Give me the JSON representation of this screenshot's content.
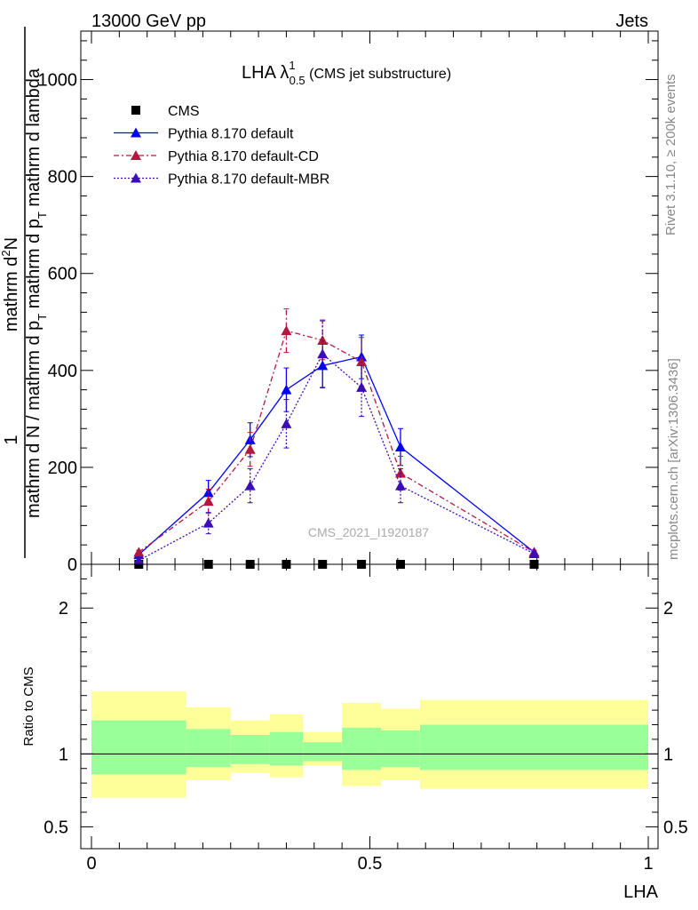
{
  "header": {
    "left": "13000 GeV pp",
    "right": "Jets"
  },
  "side_text": {
    "rivet": "Rivet 3.1.10, ≥ 200k events",
    "source": "mcplots.cern.ch [arXiv:1306.3436]"
  },
  "watermark": "CMS_2021_I1920187",
  "main": {
    "title_main": "LHA λ",
    "title_sup": "1",
    "title_sub": "0.5",
    "title_rest": " (CMS jet substructure)",
    "ylabel_top": "1",
    "ylabel_top_a": "mathrm d",
    "ylabel_top_b": "2",
    "ylabel_top_c": "N",
    "ylabel_bottom_a": "mathrm d N / mathrm d p",
    "ylabel_bottom_b": "T",
    "ylabel_bottom_c": " mathrm d p",
    "ylabel_bottom_d": "T",
    "ylabel_bottom_e": " mathrm d lambda"
  },
  "ratio": {
    "ylabel": "Ratio to CMS",
    "xlabel": "LHA"
  },
  "colors": {
    "cms": "#000000",
    "default": "#0000ff",
    "cd": "#b3173d",
    "mbr": "#3c0db5",
    "band_inner": "#99ff99",
    "band_outer": "#ffff99"
  },
  "chart_data": [
    {
      "type": "line",
      "panel": "main",
      "xlim": [
        0,
        1
      ],
      "ylim": [
        0,
        1100
      ],
      "yticks": [
        0,
        200,
        400,
        600,
        800,
        1000
      ],
      "ytick_labels": [
        "0",
        "200",
        "400",
        "600",
        "800",
        "1000"
      ],
      "x_edges": [
        0,
        0.17,
        0.25,
        0.32,
        0.38,
        0.45,
        0.52,
        0.59,
        1.0
      ],
      "legend": {
        "placement": "top-left"
      },
      "series": [
        {
          "name": "CMS",
          "marker": "square",
          "x": [
            0.085,
            0.21,
            0.285,
            0.35,
            0.415,
            0.485,
            0.555,
            0.795
          ],
          "y": [
            0,
            0,
            0,
            0,
            0,
            0,
            0,
            0
          ],
          "err": [
            0,
            0,
            0,
            0,
            0,
            0,
            0,
            0
          ]
        },
        {
          "name": "Pythia 8.170 default",
          "marker": "triangle",
          "line": "solid",
          "x": [
            0.085,
            0.21,
            0.285,
            0.35,
            0.415,
            0.485,
            0.555,
            0.795
          ],
          "y": [
            20,
            148,
            257,
            360,
            410,
            428,
            242,
            25
          ],
          "err": [
            4,
            25,
            35,
            45,
            45,
            45,
            38,
            4
          ]
        },
        {
          "name": "Pythia 8.170 default-CD",
          "marker": "triangle",
          "line": "dashdot",
          "x": [
            0.085,
            0.21,
            0.285,
            0.35,
            0.415,
            0.485,
            0.555,
            0.795
          ],
          "y": [
            25,
            130,
            237,
            482,
            462,
            418,
            188,
            25
          ],
          "err": [
            4,
            25,
            35,
            45,
            40,
            50,
            35,
            4
          ]
        },
        {
          "name": "Pythia 8.170 default-MBR",
          "marker": "triangle",
          "line": "dotted",
          "x": [
            0.085,
            0.21,
            0.285,
            0.35,
            0.415,
            0.485,
            0.555,
            0.795
          ],
          "y": [
            8,
            85,
            162,
            290,
            434,
            365,
            162,
            22
          ],
          "err": [
            4,
            22,
            35,
            50,
            70,
            60,
            35,
            4
          ]
        }
      ]
    },
    {
      "type": "area",
      "panel": "ratio",
      "xlim": [
        0,
        1
      ],
      "ylim": [
        0.35,
        2.3
      ],
      "yticks": [
        0.5,
        1,
        2
      ],
      "ytick_labels": [
        "0.5",
        "1",
        "2"
      ],
      "xticks": [
        0,
        0.5,
        1
      ],
      "xtick_labels": [
        "0",
        "0.5",
        "1"
      ],
      "reference_line": 1,
      "x_edges": [
        0,
        0.17,
        0.25,
        0.32,
        0.38,
        0.45,
        0.52,
        0.59,
        1.0
      ],
      "inner_band": {
        "lo": [
          0.86,
          0.91,
          0.93,
          0.92,
          0.95,
          0.89,
          0.91,
          0.89
        ],
        "hi": [
          1.23,
          1.17,
          1.13,
          1.15,
          1.08,
          1.18,
          1.16,
          1.2
        ]
      },
      "outer_band": {
        "lo": [
          0.7,
          0.82,
          0.87,
          0.84,
          0.92,
          0.78,
          0.82,
          0.76
        ],
        "hi": [
          1.43,
          1.32,
          1.23,
          1.27,
          1.15,
          1.35,
          1.31,
          1.37
        ]
      }
    }
  ]
}
